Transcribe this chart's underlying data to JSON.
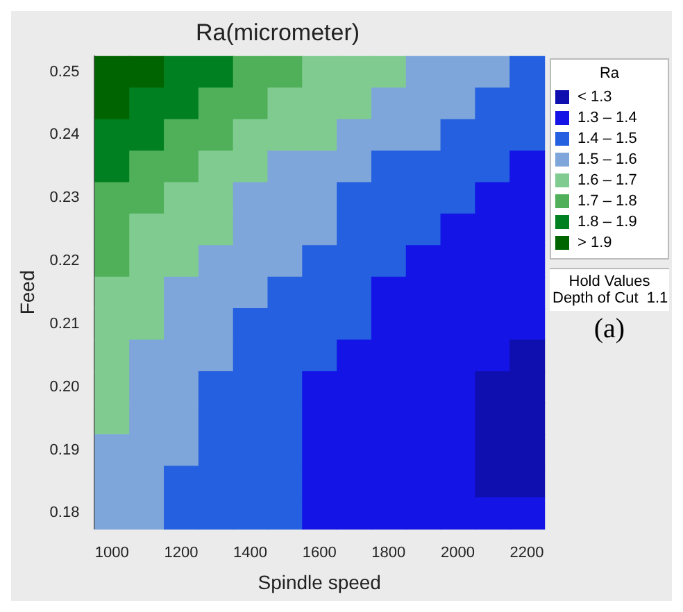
{
  "chart_data": {
    "type": "heatmap",
    "title": "Ra(micrometer)",
    "xlabel": "Spindle speed",
    "ylabel": "Feed",
    "legend_title": "Ra",
    "clim": [
      1.2,
      2.0
    ],
    "cticks": [
      {
        "value": 1.25,
        "label": "< 1.3"
      },
      {
        "value": 1.35,
        "label": "1.3 – 1.4"
      },
      {
        "value": 1.45,
        "label": "1.4 – 1.5"
      },
      {
        "value": 1.55,
        "label": "1.5 – 1.6"
      },
      {
        "value": 1.65,
        "label": "1.6 – 1.7"
      },
      {
        "value": 1.75,
        "label": "1.7 – 1.8"
      },
      {
        "value": 1.85,
        "label": "1.8 – 1.9"
      },
      {
        "value": 1.95,
        "label": "> 1.9"
      }
    ],
    "colors": [
      "#0f0fb0",
      "#1414e6",
      "#2460e0",
      "#7fa6da",
      "#80cc90",
      "#50b05a",
      "#008020",
      "#006400"
    ],
    "categories": [
      "1000",
      null,
      "1200",
      null,
      "1400",
      null,
      "1600",
      null,
      "1800",
      null,
      "2000",
      null,
      "2200"
    ],
    "y_categories": [
      "0.25",
      null,
      "0.24",
      null,
      "0.23",
      null,
      "0.22",
      null,
      "0.21",
      null,
      "0.20",
      null,
      "0.19",
      null,
      "0.18"
    ],
    "cells": [
      [
        1.95,
        1.95,
        1.85,
        1.85,
        1.75,
        1.75,
        1.65,
        1.65,
        1.65,
        1.55,
        1.55,
        1.55,
        1.45
      ],
      [
        1.95,
        1.85,
        1.85,
        1.75,
        1.75,
        1.65,
        1.65,
        1.65,
        1.55,
        1.55,
        1.55,
        1.45,
        1.45
      ],
      [
        1.85,
        1.85,
        1.75,
        1.75,
        1.65,
        1.65,
        1.65,
        1.55,
        1.55,
        1.55,
        1.45,
        1.45,
        1.45
      ],
      [
        1.85,
        1.75,
        1.75,
        1.65,
        1.65,
        1.55,
        1.55,
        1.55,
        1.45,
        1.45,
        1.45,
        1.45,
        1.35
      ],
      [
        1.75,
        1.75,
        1.65,
        1.65,
        1.55,
        1.55,
        1.55,
        1.45,
        1.45,
        1.45,
        1.45,
        1.35,
        1.35
      ],
      [
        1.75,
        1.65,
        1.65,
        1.65,
        1.55,
        1.55,
        1.55,
        1.45,
        1.45,
        1.45,
        1.35,
        1.35,
        1.35
      ],
      [
        1.75,
        1.65,
        1.65,
        1.55,
        1.55,
        1.55,
        1.45,
        1.45,
        1.45,
        1.35,
        1.35,
        1.35,
        1.35
      ],
      [
        1.65,
        1.65,
        1.55,
        1.55,
        1.55,
        1.45,
        1.45,
        1.45,
        1.35,
        1.35,
        1.35,
        1.35,
        1.35
      ],
      [
        1.65,
        1.65,
        1.55,
        1.55,
        1.45,
        1.45,
        1.45,
        1.45,
        1.35,
        1.35,
        1.35,
        1.35,
        1.35
      ],
      [
        1.65,
        1.55,
        1.55,
        1.55,
        1.45,
        1.45,
        1.45,
        1.35,
        1.35,
        1.35,
        1.35,
        1.35,
        1.25
      ],
      [
        1.65,
        1.55,
        1.55,
        1.45,
        1.45,
        1.45,
        1.35,
        1.35,
        1.35,
        1.35,
        1.35,
        1.25,
        1.25
      ],
      [
        1.65,
        1.55,
        1.55,
        1.45,
        1.45,
        1.45,
        1.35,
        1.35,
        1.35,
        1.35,
        1.35,
        1.25,
        1.25
      ],
      [
        1.55,
        1.55,
        1.55,
        1.45,
        1.45,
        1.45,
        1.35,
        1.35,
        1.35,
        1.35,
        1.35,
        1.25,
        1.25
      ],
      [
        1.55,
        1.55,
        1.45,
        1.45,
        1.45,
        1.45,
        1.35,
        1.35,
        1.35,
        1.35,
        1.35,
        1.25,
        1.25
      ],
      [
        1.55,
        1.55,
        1.45,
        1.45,
        1.45,
        1.45,
        1.35,
        1.35,
        1.35,
        1.35,
        1.35,
        1.35,
        1.35
      ]
    ],
    "annotations": [
      "Hold Values",
      "Depth of Cut  1.1",
      "(a)"
    ]
  }
}
